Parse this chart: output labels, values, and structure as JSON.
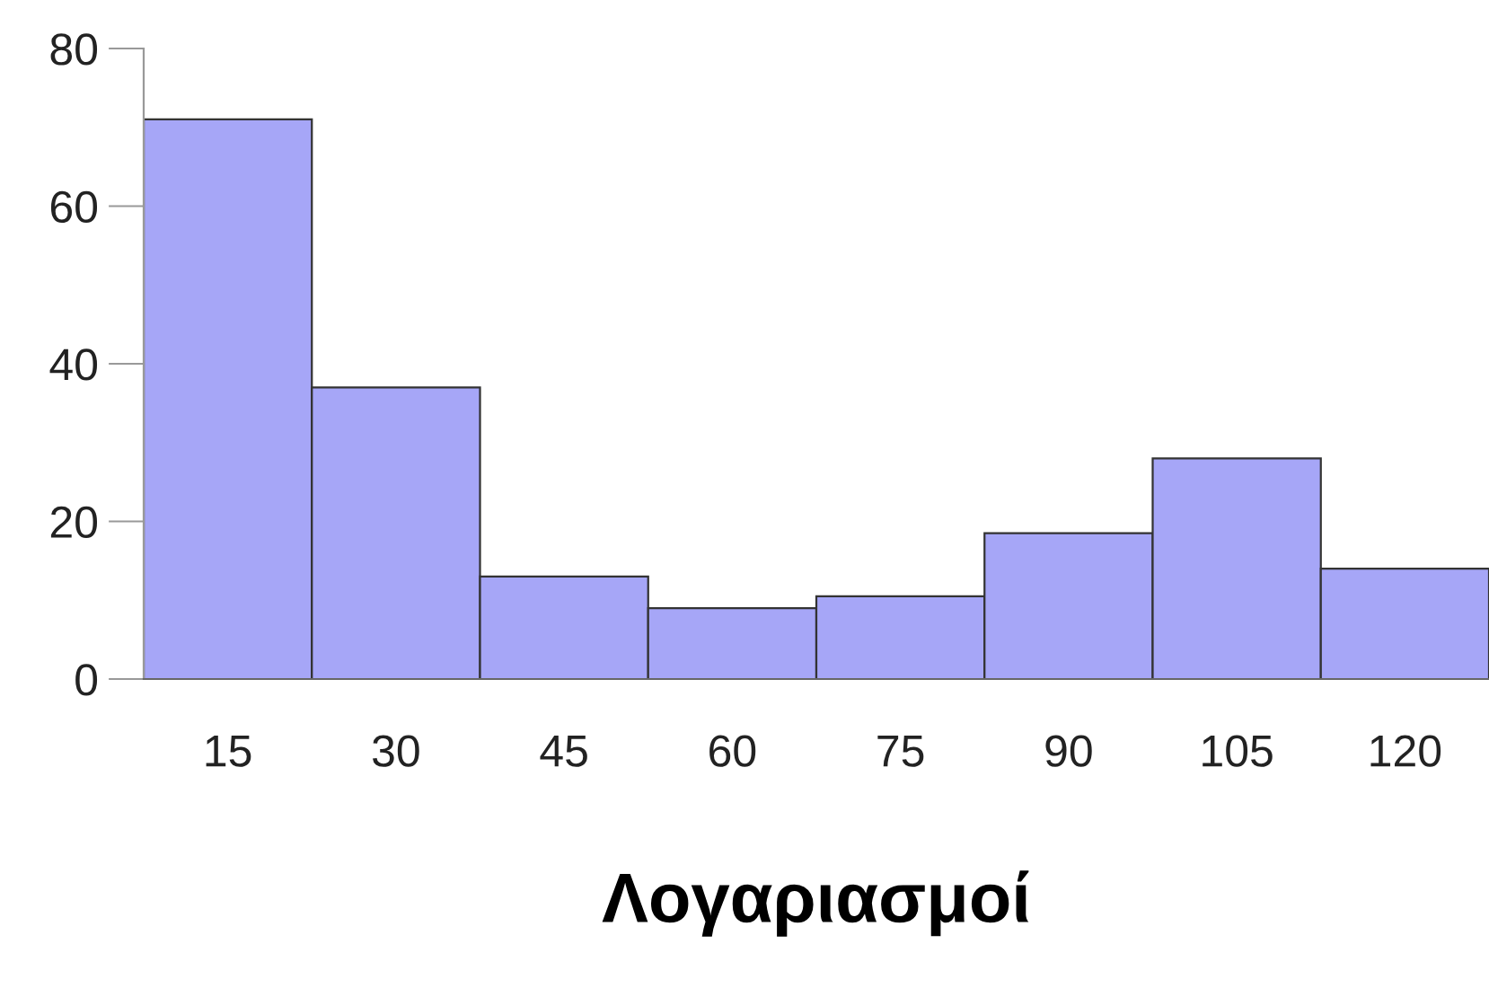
{
  "chart_data": {
    "type": "bar",
    "xlabel": "Λογαριασμοί",
    "categories": [
      "15",
      "30",
      "45",
      "60",
      "75",
      "90",
      "105",
      "120"
    ],
    "values": [
      71,
      37,
      13,
      9,
      10.5,
      18.5,
      28,
      14
    ],
    "color": "#a6a6f7",
    "ylim": [
      0,
      80
    ],
    "yticks": [
      0,
      20,
      40,
      60,
      80
    ],
    "grid": false
  }
}
